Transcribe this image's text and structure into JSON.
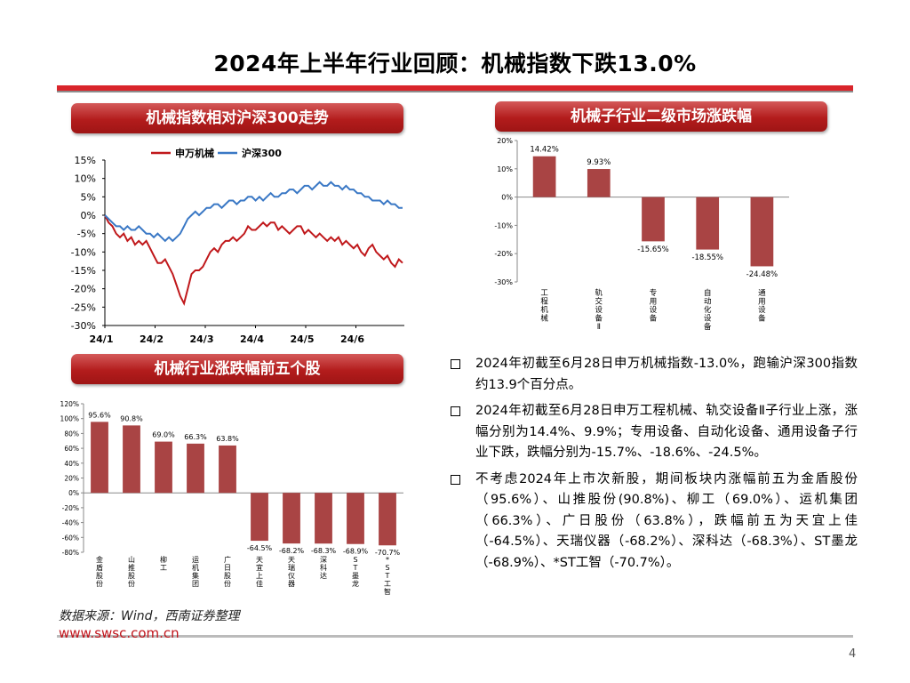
{
  "page": {
    "title": "2024年上半年行业回顾：机械指数下跌13.0%",
    "source": "数据来源：Wind，西南证券整理",
    "url": "www.swsc.com.cn",
    "page_number": "4",
    "colors": {
      "accent": "#d9252b",
      "bar": "#a94444",
      "line_red": "#c0181b",
      "line_blue": "#3a78c5"
    }
  },
  "banners": {
    "chart1": "机械指数相对沪深300走势",
    "chart2": "机械子行业二级市场涨跌幅",
    "chart3": "机械行业涨跌幅前五个股"
  },
  "bullets": [
    "2024年初截至6月28日申万机械指数-13.0%，跑输沪深300指数约13.9个百分点。",
    "2024年初截至6月28日申万工程机械、轨交设备Ⅱ子行业上涨，涨幅分别为14.4%、9.9%；专用设备、自动化设备、通用设备子行业下跌，跌幅分别为-15.7%、-18.6%、-24.5%。",
    "不考虑2024年上市次新股，期间板块内涨幅前五为金盾股份（95.6%）、山推股份(90.8%)、柳工（69.0%）、运机集团（66.3%）、广日股份（63.8%），跌幅前五为天宜上佳（-64.5%）、天瑞仪器（-68.2%）、深科达（-68.3%）、ST墨龙（-68.9%）、*ST工智（-70.7%）。"
  ],
  "chart_data": [
    {
      "type": "line",
      "title": "机械指数相对沪深300走势",
      "x_ticks": [
        "24/1",
        "24/2",
        "24/3",
        "24/4",
        "24/5",
        "24/6"
      ],
      "y_ticks": [
        "15%",
        "10%",
        "5%",
        "0%",
        "-5%",
        "-10%",
        "-15%",
        "-20%",
        "-25%",
        "-30%"
      ],
      "ylim": [
        -30,
        15
      ],
      "series": [
        {
          "name": "申万机械",
          "color": "#c0181b",
          "values": [
            0,
            -2,
            -3,
            -5,
            -6,
            -5,
            -7,
            -6,
            -8,
            -7,
            -8,
            -7,
            -9,
            -11,
            -13,
            -13,
            -12,
            -14,
            -16,
            -19,
            -22,
            -24,
            -20,
            -16,
            -15,
            -15,
            -14,
            -12,
            -10,
            -9,
            -10,
            -8,
            -7,
            -7,
            -6,
            -7,
            -6,
            -5,
            -3,
            -4,
            -4,
            -3,
            -2,
            -3,
            -2,
            -2,
            -4,
            -3,
            -4,
            -5,
            -4,
            -3,
            -3,
            -5,
            -4,
            -5,
            -6,
            -5,
            -6,
            -7,
            -6,
            -7,
            -6,
            -8,
            -7,
            -8,
            -9,
            -8,
            -10,
            -11,
            -9,
            -8,
            -10,
            -11,
            -12,
            -11,
            -13,
            -14,
            -12,
            -13
          ]
        },
        {
          "name": "沪深300",
          "color": "#3a78c5",
          "values": [
            0,
            -1,
            -2,
            -3,
            -3,
            -4,
            -3,
            -4,
            -4,
            -3,
            -4,
            -5,
            -5,
            -6,
            -5,
            -6,
            -7,
            -6,
            -7,
            -6,
            -5,
            -3,
            -1,
            0,
            1,
            0,
            1,
            2,
            2,
            3,
            3,
            2,
            3,
            4,
            4,
            3,
            4,
            4,
            5,
            5,
            4,
            5,
            4,
            5,
            6,
            5,
            5,
            6,
            6,
            7,
            7,
            6,
            7,
            8,
            8,
            7,
            8,
            9,
            8,
            8,
            9,
            8,
            8,
            7,
            8,
            7,
            7,
            6,
            6,
            5,
            5,
            4,
            4,
            4,
            3,
            4,
            3,
            3,
            2,
            2
          ]
        }
      ]
    },
    {
      "type": "bar",
      "title": "机械子行业二级市场涨跌幅",
      "categories": [
        "工程机械",
        "轨交设备Ⅱ",
        "专用设备",
        "自动化设备",
        "通用设备"
      ],
      "values": [
        14.42,
        9.93,
        -15.65,
        -18.55,
        -24.48
      ],
      "data_labels": [
        "14.42%",
        "9.93%",
        "-15.65%",
        "-18.55%",
        "-24.48%"
      ],
      "y_ticks": [
        "20%",
        "10%",
        "0%",
        "-10%",
        "-20%",
        "-30%"
      ],
      "ylim": [
        -30,
        20
      ]
    },
    {
      "type": "bar",
      "title": "机械行业涨跌幅前五个股",
      "categories": [
        "金盾股份",
        "山推股份",
        "柳工",
        "运机集团",
        "广日股份",
        "天宜上佳",
        "天瑞仪器",
        "深科达",
        "ST墨龙",
        "*ST工智"
      ],
      "values": [
        95.6,
        90.8,
        69.0,
        66.3,
        63.8,
        -64.5,
        -68.2,
        -68.3,
        -68.9,
        -70.7
      ],
      "data_labels": [
        "95.6%",
        "90.8%",
        "69.0%",
        "66.3%",
        "63.8%",
        "-64.5%",
        "-68.2%",
        "-68.3%",
        "-68.9%",
        "-70.7%"
      ],
      "y_ticks": [
        "120%",
        "100%",
        "80%",
        "60%",
        "40%",
        "20%",
        "0%",
        "-20%",
        "-40%",
        "-60%",
        "-80%"
      ],
      "ylim": [
        -80,
        120
      ]
    }
  ]
}
